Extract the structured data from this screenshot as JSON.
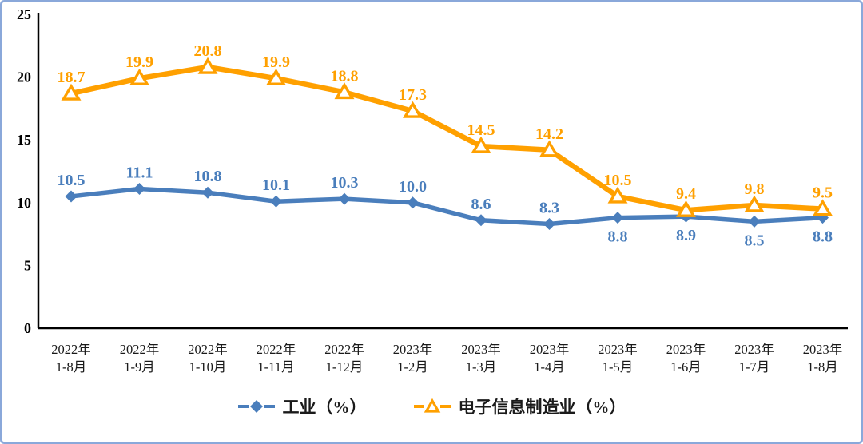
{
  "frame": {
    "background": "#FFFFFF",
    "border_color": "#8AA8DA"
  },
  "chart_data": {
    "type": "line",
    "title": "",
    "xlabel": "",
    "ylabel": "",
    "ylim": [
      0,
      25
    ],
    "yticks": [
      "0",
      "5",
      "10",
      "15",
      "20",
      "25"
    ],
    "grid": false,
    "legend_position": "bottom",
    "axis_color": "#000000",
    "tick_label_color": "#000000",
    "categories": [
      {
        "year": "2022年",
        "months": "1-8月"
      },
      {
        "year": "2022年",
        "months": "1-9月"
      },
      {
        "year": "2022年",
        "months": "1-10月"
      },
      {
        "year": "2022年",
        "months": "1-11月"
      },
      {
        "year": "2022年",
        "months": "1-12月"
      },
      {
        "year": "2023年",
        "months": "1-2月"
      },
      {
        "year": "2023年",
        "months": "1-3月"
      },
      {
        "year": "2023年",
        "months": "1-4月"
      },
      {
        "year": "2023年",
        "months": "1-5月"
      },
      {
        "year": "2023年",
        "months": "1-6月"
      },
      {
        "year": "2023年",
        "months": "1-7月"
      },
      {
        "year": "2023年",
        "months": "1-8月"
      }
    ],
    "series": [
      {
        "name": "工业（%）",
        "color": "#4A7EBC",
        "marker": "diamond",
        "values": [
          10.5,
          11.1,
          10.8,
          10.1,
          10.3,
          10.0,
          8.6,
          8.3,
          8.8,
          8.9,
          8.5,
          8.8
        ],
        "labels": [
          "10.5",
          "11.1",
          "10.8",
          "10.1",
          "10.3",
          "10.0",
          "8.6",
          "8.3",
          "8.8",
          "8.9",
          "8.5",
          "8.8"
        ],
        "label_side": [
          "above",
          "above",
          "above",
          "above",
          "above",
          "above",
          "above",
          "above",
          "below",
          "below",
          "below",
          "below"
        ]
      },
      {
        "name": "电子信息制造业（%）",
        "color": "#FFA000",
        "marker": "triangle",
        "values": [
          18.7,
          19.9,
          20.8,
          19.9,
          18.8,
          17.3,
          14.5,
          14.2,
          10.5,
          9.4,
          9.8,
          9.5
        ],
        "labels": [
          "18.7",
          "19.9",
          "20.8",
          "19.9",
          "18.8",
          "17.3",
          "14.5",
          "14.2",
          "10.5",
          "9.4",
          "9.8",
          "9.5"
        ],
        "label_side": [
          "above",
          "above",
          "above",
          "above",
          "above",
          "above",
          "above",
          "above",
          "above",
          "above",
          "above",
          "above"
        ]
      }
    ]
  }
}
